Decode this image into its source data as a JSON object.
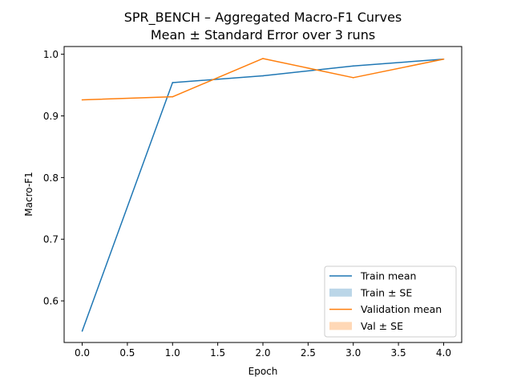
{
  "chart_data": {
    "type": "line",
    "title": "SPR_BENCH – Aggregated Macro-F1 Curves",
    "subtitle": "Mean ± Standard Error over 3 runs",
    "xlabel": "Epoch",
    "ylabel": "Macro-F1",
    "xlim": [
      -0.2,
      4.2
    ],
    "ylim": [
      0.5325,
      1.0125
    ],
    "xticks": [
      0.0,
      0.5,
      1.0,
      1.5,
      2.0,
      2.5,
      3.0,
      3.5,
      4.0
    ],
    "xtick_labels": [
      "0.0",
      "0.5",
      "1.0",
      "1.5",
      "2.0",
      "2.5",
      "3.0",
      "3.5",
      "4.0"
    ],
    "yticks": [
      0.6,
      0.7,
      0.8,
      0.9,
      1.0
    ],
    "ytick_labels": [
      "0.6",
      "0.7",
      "0.8",
      "0.9",
      "1.0"
    ],
    "grid": false,
    "legend_position": "lower-right",
    "x": [
      0,
      1,
      2,
      3,
      4
    ],
    "series": [
      {
        "name": "Train mean",
        "values": [
          0.551,
          0.954,
          0.965,
          0.981,
          0.992
        ],
        "color": "#1f77b4"
      },
      {
        "name": "Validation mean",
        "values": [
          0.926,
          0.931,
          0.993,
          0.962,
          0.992
        ],
        "color": "#ff7f0e"
      }
    ],
    "legend": [
      {
        "label": "Train mean",
        "kind": "line",
        "color": "#1f77b4"
      },
      {
        "label": "Train ± SE",
        "kind": "patch",
        "color": "#1f77b4"
      },
      {
        "label": "Validation mean",
        "kind": "line",
        "color": "#ff7f0e"
      },
      {
        "label": "Val ± SE",
        "kind": "patch",
        "color": "#ff7f0e"
      }
    ]
  }
}
